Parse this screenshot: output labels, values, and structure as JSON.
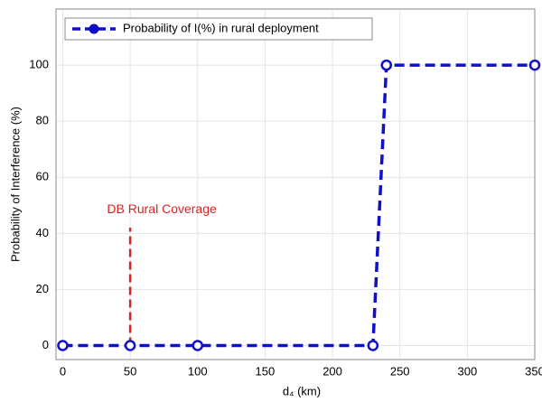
{
  "chart_data": {
    "type": "line",
    "xlabel": "d₄ (km)",
    "ylabel": "Probability of Interference (%)",
    "x": [
      0,
      50,
      100,
      230,
      240,
      350
    ],
    "series": [
      {
        "name": "Probability of I(%) in rural deployment",
        "color": "#1010c8",
        "values": [
          0,
          0,
          0,
          0,
          100,
          100
        ]
      }
    ],
    "xlim": [
      -5,
      350
    ],
    "xticks": [
      0,
      50,
      100,
      150,
      200,
      250,
      300,
      350
    ],
    "ylim": [
      -5,
      120
    ],
    "yticks": [
      0,
      20,
      40,
      60,
      80,
      100
    ],
    "grid": true,
    "legend": "upper left",
    "annotation": {
      "text": "DB Rural Coverage",
      "x": 50,
      "y": 42,
      "color": "#e02020"
    }
  }
}
